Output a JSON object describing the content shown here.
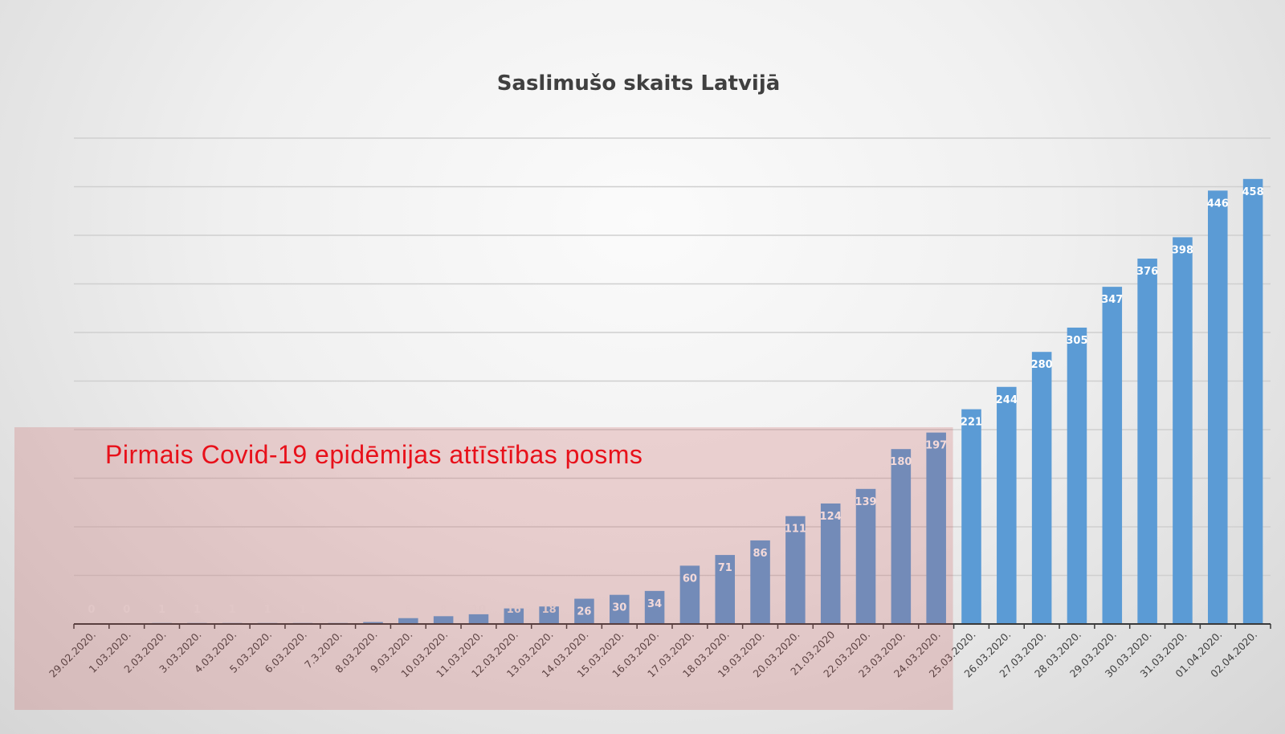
{
  "chart_data": {
    "type": "bar",
    "title": "Saslimušo skaits Latvijā",
    "xlabel": "",
    "ylabel": "",
    "ylim": [
      0,
      500
    ],
    "grid": true,
    "legend": "none",
    "categories": [
      "29.02.2020.",
      "1.03.2020.",
      "2.03.2020.",
      "3.03.2020.",
      "4.03.2020.",
      "5.03.2020.",
      "6.03.2020.",
      "7.3.2020.",
      "8.03.2020.",
      "9.03.2020.",
      "10.03.2020.",
      "11.03.2020.",
      "12.03.2020.",
      "13.03.2020.",
      "14.03.2020.",
      "15.03.2020.",
      "16.03.2020.",
      "17.03.2020.",
      "18.03.2020.",
      "19.03.2020.",
      "20.03.2020.",
      "21.03.2020",
      "22.03.2020.",
      "23.03.2020.",
      "24.03.2020.",
      "25.03.2020.",
      "26.03.2020.",
      "27.03.2020.",
      "28.03.2020.",
      "29.03.2020.",
      "30.03.2020.",
      "31.03.2020.",
      "01.04.2020.",
      "02.04.2020."
    ],
    "values": [
      0,
      0,
      1,
      1,
      1,
      1,
      1,
      1,
      2,
      6,
      8,
      10,
      16,
      18,
      26,
      30,
      34,
      60,
      71,
      86,
      111,
      124,
      139,
      180,
      197,
      221,
      244,
      280,
      305,
      347,
      376,
      398,
      446,
      458
    ],
    "bar_color": "#5b9bd5",
    "annotation": {
      "text": "Pirmais Covid-19 epidēmijas attīstības posms",
      "from_category": "29.02.2020.",
      "to_category": "24.03.2020.",
      "color": "#e8101a"
    }
  }
}
